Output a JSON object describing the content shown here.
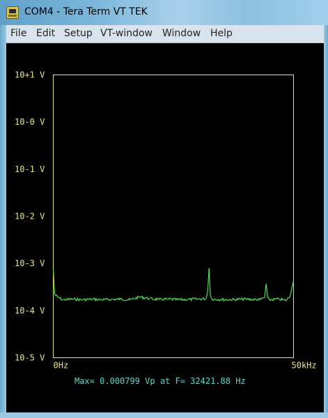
{
  "window": {
    "title": "COM4 - Tera Term VT TEK",
    "app_icon": "teraterm-icon"
  },
  "menu": {
    "items": [
      "File",
      "Edit",
      "Setup",
      "VT-window",
      "Window",
      "Help"
    ]
  },
  "colors": {
    "axis": "#e8e87a",
    "trace": "#4de04d",
    "readout": "#5ad8d0",
    "background": "#000000"
  },
  "chart_data": {
    "type": "line",
    "scale": "log",
    "y_tick_labels": [
      "10+1 V",
      "10-0 V",
      "10-1 V",
      "10-2 V",
      "10-3 V",
      "10-4 V",
      "10-5 V"
    ],
    "y_ticks_exponent": [
      1,
      0,
      -1,
      -2,
      -3,
      -4,
      -5
    ],
    "ylim_exponent": [
      -5,
      1
    ],
    "x_tick_labels": [
      "0Hz",
      "50kHz"
    ],
    "xlim": [
      0,
      50000
    ],
    "x_unit": "Hz",
    "series": [
      {
        "x": [
          0,
          300,
          1000,
          2000,
          4000,
          6000,
          8000,
          10000,
          12000,
          14000,
          16000,
          18000,
          20000,
          22000,
          24000,
          26000,
          28000,
          30000,
          31800,
          32100,
          32421.88,
          32700,
          33000,
          36000,
          40000,
          43000,
          44000,
          44300,
          44600,
          45000,
          47000,
          48500,
          49300,
          50000
        ],
        "y": [
          0.00075,
          0.00022,
          0.00019,
          0.00017,
          0.000175,
          0.00017,
          0.000175,
          0.00017,
          0.000172,
          0.000175,
          0.00017,
          0.000195,
          0.00018,
          0.000172,
          0.000175,
          0.00017,
          0.000172,
          0.000175,
          0.00018,
          0.00024,
          0.000799,
          0.00021,
          0.000175,
          0.00017,
          0.000175,
          0.00017,
          0.00019,
          0.00037,
          0.00019,
          0.00017,
          0.000175,
          0.000165,
          0.00021,
          0.00044
        ]
      }
    ],
    "annotation": "Max= 0.000799 Vp at F= 32421.88 Hz"
  }
}
